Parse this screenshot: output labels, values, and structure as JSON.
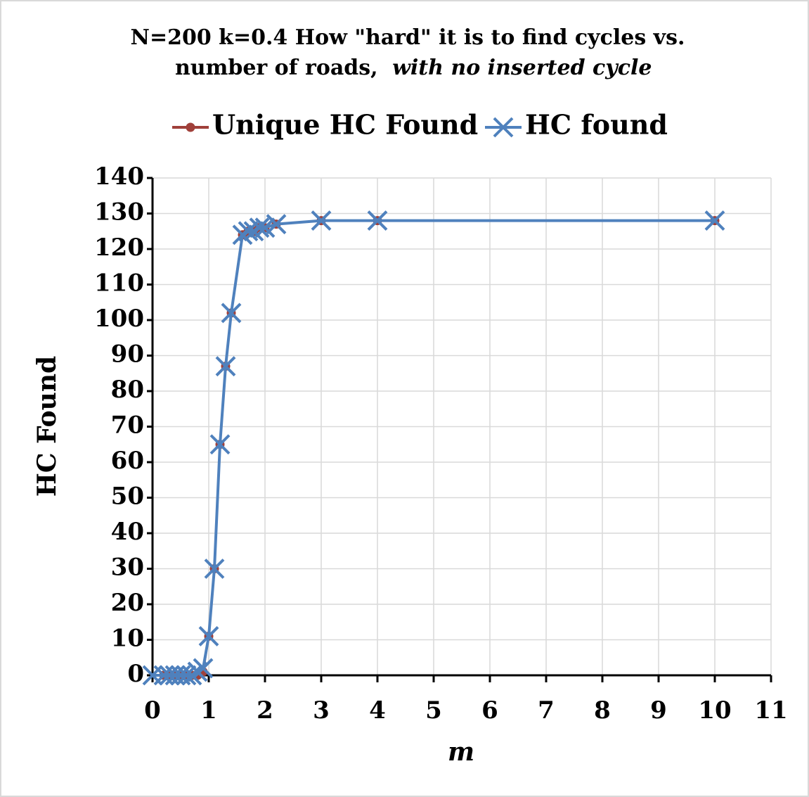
{
  "chart_data": {
    "type": "line",
    "title": {
      "line1": "N=200 k=0.4 How \"hard\" it is to find cycles vs.",
      "line2": "number of roads,",
      "line2_italic": "with no inserted cycle"
    },
    "x_label": "m",
    "y_label": "HC Found",
    "x": [
      0,
      0.2,
      0.3,
      0.4,
      0.5,
      0.6,
      0.7,
      0.8,
      0.9,
      1.0,
      1.1,
      1.2,
      1.3,
      1.4,
      1.6,
      1.7,
      1.8,
      1.9,
      2.0,
      2.2,
      3,
      4,
      10
    ],
    "series": [
      {
        "name": "Unique HC Found",
        "color": "#a0403a",
        "marker": "circle",
        "values": [
          null,
          0,
          0,
          0,
          0,
          0,
          0,
          0,
          1,
          11,
          30,
          65,
          87,
          102,
          124,
          125,
          125,
          126,
          126,
          127,
          128,
          128,
          128
        ]
      },
      {
        "name": "HC found",
        "color": "#4f81bd",
        "marker": "x",
        "values": [
          0,
          0,
          0,
          0,
          0,
          0,
          0,
          1,
          2,
          11,
          30,
          65,
          87,
          102,
          124,
          125,
          125,
          126,
          126,
          127,
          128,
          128,
          128
        ]
      }
    ],
    "xlim": [
      0,
      11
    ],
    "xticks": [
      0,
      1,
      2,
      3,
      4,
      5,
      6,
      7,
      8,
      9,
      10,
      11
    ],
    "ylim": [
      0,
      140
    ],
    "yticks": [
      0,
      10,
      20,
      30,
      40,
      50,
      60,
      70,
      80,
      90,
      100,
      110,
      120,
      130,
      140
    ],
    "grid": true,
    "legend": "top"
  }
}
